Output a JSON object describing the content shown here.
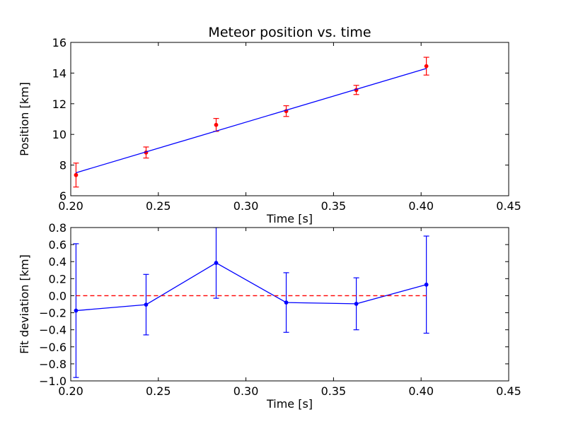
{
  "chart_data": [
    {
      "type": "line",
      "title": "Meteor position vs. time",
      "xlabel": "Time [s]",
      "ylabel": "Position [km]",
      "xlim": [
        0.2,
        0.45
      ],
      "ylim": [
        6,
        16
      ],
      "xticks": [
        0.2,
        0.25,
        0.3,
        0.35,
        0.4,
        0.45
      ],
      "xtick_labels": [
        "0.20",
        "0.25",
        "0.30",
        "0.35",
        "0.40",
        "0.45"
      ],
      "yticks": [
        6,
        8,
        10,
        12,
        14,
        16
      ],
      "ytick_labels": [
        "6",
        "8",
        "10",
        "12",
        "14",
        "16"
      ],
      "series": [
        {
          "kind": "errorbar-points",
          "color": "#ff0000",
          "x": [
            0.203,
            0.243,
            0.283,
            0.323,
            0.363,
            0.403
          ],
          "y": [
            7.35,
            8.82,
            10.62,
            11.52,
            12.9,
            14.45
          ],
          "yerr": [
            0.78,
            0.36,
            0.42,
            0.35,
            0.3,
            0.58
          ]
        },
        {
          "kind": "fit-line",
          "color": "#0000ff",
          "x": [
            0.203,
            0.403
          ],
          "y": [
            7.5,
            14.3
          ]
        }
      ]
    },
    {
      "type": "line",
      "title": "",
      "xlabel": "Time [s]",
      "ylabel": "Fit deviation [km]",
      "xlim": [
        0.2,
        0.45
      ],
      "ylim": [
        -1.0,
        0.8
      ],
      "xticks": [
        0.2,
        0.25,
        0.3,
        0.35,
        0.4,
        0.45
      ],
      "xtick_labels": [
        "0.20",
        "0.25",
        "0.30",
        "0.35",
        "0.40",
        "0.45"
      ],
      "yticks": [
        -1.0,
        -0.8,
        -0.6,
        -0.4,
        -0.2,
        0.0,
        0.2,
        0.4,
        0.6,
        0.8
      ],
      "ytick_labels": [
        "−1.0",
        "−0.8",
        "−0.6",
        "−0.4",
        "−0.2",
        "0.0",
        "0.2",
        "0.4",
        "0.6",
        "0.8"
      ],
      "series": [
        {
          "kind": "errorbar-line",
          "color": "#0000ff",
          "x": [
            0.203,
            0.243,
            0.283,
            0.323,
            0.363,
            0.403
          ],
          "y": [
            -0.175,
            -0.105,
            0.385,
            -0.08,
            -0.095,
            0.13
          ],
          "yerr": [
            0.785,
            0.355,
            0.415,
            0.35,
            0.305,
            0.57
          ]
        },
        {
          "kind": "reference-line",
          "color": "#ff0000",
          "dashed": true,
          "x": [
            0.203,
            0.403
          ],
          "y": [
            0.0,
            0.0
          ]
        }
      ]
    }
  ]
}
